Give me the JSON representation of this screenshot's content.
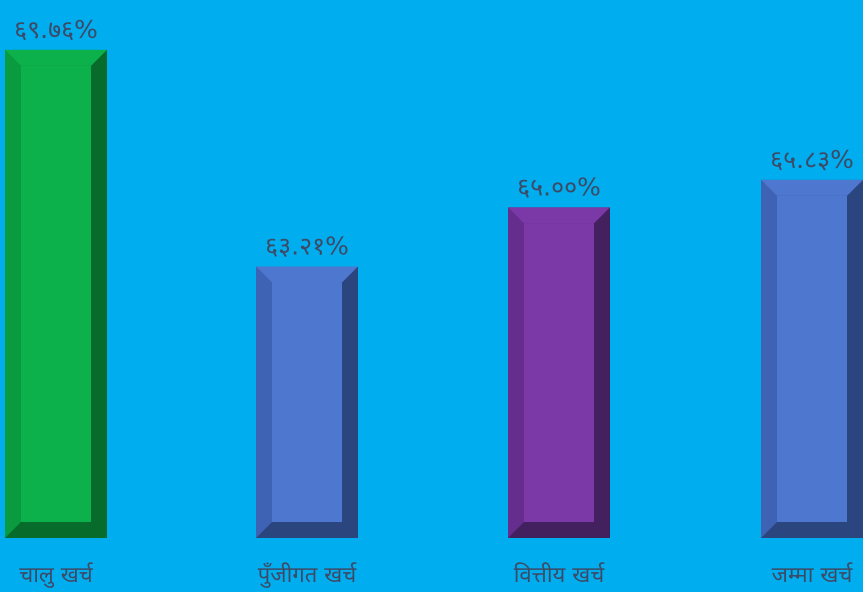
{
  "chart_data": {
    "type": "bar",
    "categories": [
      "चालु खर्च",
      "पुँजीगत खर्च",
      "वित्तीय खर्च",
      "जम्मा खर्च"
    ],
    "values": [
      69.76,
      63.21,
      65.0,
      65.83
    ],
    "value_labels": [
      "६९.७६%",
      "६३.२१%",
      "६५.००%",
      "६५.८३%"
    ],
    "unit": "%",
    "ylim": [
      55,
      70
    ],
    "grid": false,
    "legend": "none",
    "colors": {
      "background": "#00aeef",
      "text": "#3d4a66",
      "bars": [
        {
          "face": "#0db14b",
          "light": "#0a9a40",
          "dark": "#076b2c"
        },
        {
          "face": "#4e77cf",
          "light": "#3e63b5",
          "dark": "#2b457f"
        },
        {
          "face": "#7b39a8",
          "light": "#652d8d",
          "dark": "#43205e"
        },
        {
          "face": "#4e77cf",
          "light": "#3e63b5",
          "dark": "#2b457f"
        }
      ]
    }
  }
}
